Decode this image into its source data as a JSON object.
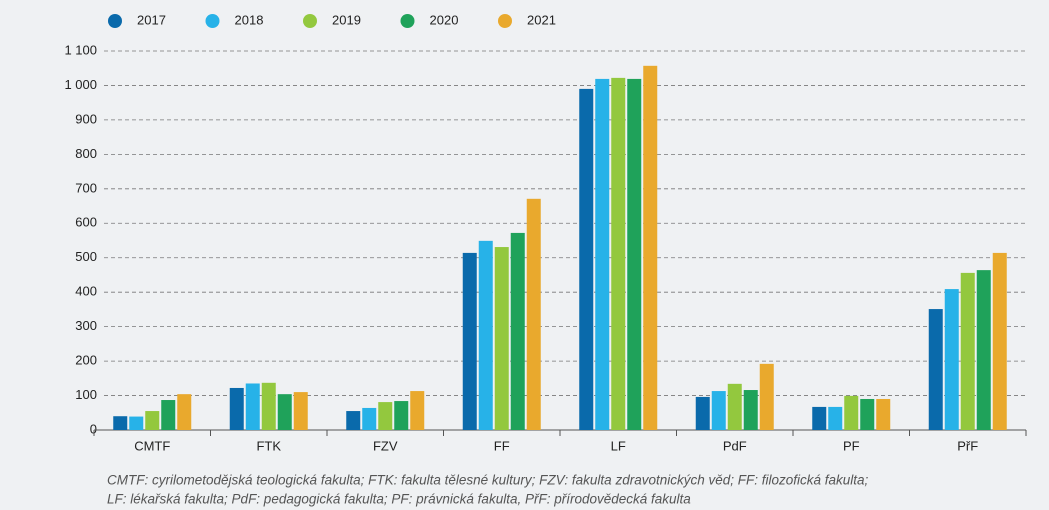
{
  "chart_data": {
    "type": "bar",
    "categories": [
      "CMTF",
      "FTK",
      "FZV",
      "FF",
      "LF",
      "PdF",
      "PF",
      "PřF"
    ],
    "series": [
      {
        "name": "2017",
        "color": "#0a6aab",
        "values": [
          40,
          122,
          55,
          514,
          990,
          96,
          67,
          351
        ]
      },
      {
        "name": "2018",
        "color": "#27b2e8",
        "values": [
          39,
          135,
          64,
          549,
          1019,
          113,
          67,
          409
        ]
      },
      {
        "name": "2019",
        "color": "#93c83e",
        "values": [
          55,
          137,
          81,
          531,
          1022,
          134,
          99,
          456
        ]
      },
      {
        "name": "2020",
        "color": "#1fa25a",
        "values": [
          87,
          104,
          84,
          572,
          1019,
          116,
          90,
          464
        ]
      },
      {
        "name": "2021",
        "color": "#e9a92d",
        "values": [
          104,
          110,
          113,
          671,
          1057,
          192,
          90,
          514
        ]
      }
    ],
    "ylim": [
      0,
      1100
    ],
    "yticks": [
      0,
      100,
      200,
      300,
      400,
      500,
      600,
      700,
      800,
      900,
      {
        "value": 1000,
        "label": "1 000"
      },
      {
        "value": 1100,
        "label": "1 100"
      }
    ],
    "grid": true,
    "legend": "top",
    "footnote": [
      "CMTF: cyrilometodějská teologická fakulta; FTK: fakulta tělesné kultury; FZV: fakulta zdravotnických věd; FF: filozofická fakulta;",
      "LF: lékařská fakulta; PdF: pedagogická fakulta; PF: právnická fakulta, PřF: přírodovědecká fakulta"
    ]
  }
}
